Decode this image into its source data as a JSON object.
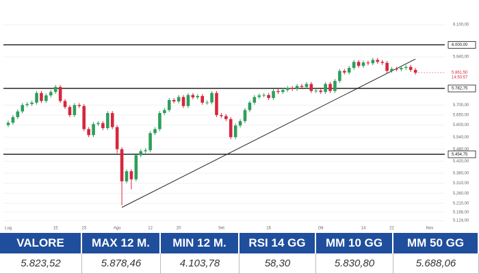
{
  "chart_data": {
    "type": "candlestick",
    "categories": [
      "Lug",
      null,
      null,
      null,
      null,
      null,
      null,
      null,
      null,
      null,
      "15",
      null,
      null,
      null,
      null,
      null,
      "23",
      null,
      null,
      null,
      null,
      null,
      null,
      "Ago",
      null,
      null,
      null,
      null,
      null,
      null,
      "12",
      null,
      null,
      null,
      null,
      null,
      "20",
      null,
      null,
      null,
      null,
      null,
      null,
      null,
      null,
      "Set",
      null,
      null,
      null,
      null,
      null,
      null,
      null,
      null,
      null,
      "16",
      null,
      null,
      null,
      null,
      null,
      null,
      null,
      null,
      null,
      null,
      "Ott",
      null,
      null,
      null,
      null,
      null,
      null,
      null,
      null,
      "14",
      null,
      null,
      null,
      null,
      null,
      "22",
      null,
      null,
      null,
      null,
      null,
      null,
      null,
      "Nov"
    ],
    "open": [
      5600,
      5612,
      5640,
      5668,
      5700,
      5705,
      5712,
      5760,
      5720,
      5748,
      5765,
      5790,
      5720,
      5690,
      5650,
      5700,
      5695,
      5580,
      5550,
      5605,
      5610,
      5585,
      5660,
      5590,
      5480,
      5320,
      5370,
      5330,
      5450,
      5470,
      5475,
      5560,
      5580,
      5660,
      5675,
      5725,
      5718,
      5740,
      5695,
      5750,
      5738,
      5745,
      5712,
      5713,
      5760,
      5650,
      5645,
      5630,
      5540,
      5598,
      5620,
      5675,
      5712,
      5740,
      5748,
      5750,
      5735,
      5770,
      5765,
      5775,
      5785,
      5780,
      5795,
      5790,
      5805,
      5770,
      5772,
      5765,
      5805,
      5770,
      5820,
      5870,
      5862,
      5885,
      5915,
      5895,
      5912,
      5908,
      5925,
      5915,
      5910,
      5870,
      5880,
      5878,
      5885,
      5890,
      5875,
      null,
      null,
      null
    ],
    "high": [
      5622,
      5650,
      5678,
      5710,
      5715,
      5722,
      5770,
      5770,
      5758,
      5775,
      5800,
      5800,
      5730,
      5700,
      5710,
      5710,
      5705,
      5590,
      5615,
      5620,
      5620,
      5670,
      5670,
      5600,
      5490,
      5380,
      5380,
      5460,
      5480,
      5485,
      5570,
      5590,
      5670,
      5685,
      5735,
      5735,
      5750,
      5750,
      5760,
      5760,
      5755,
      5755,
      5723,
      5770,
      5770,
      5660,
      5655,
      5640,
      5608,
      5630,
      5685,
      5722,
      5750,
      5758,
      5760,
      5760,
      5780,
      5780,
      5785,
      5795,
      5795,
      5805,
      5805,
      5815,
      5815,
      5782,
      5782,
      5815,
      5815,
      5830,
      5880,
      5880,
      5895,
      5925,
      5925,
      5922,
      5922,
      5935,
      5935,
      5925,
      5920,
      5890,
      5890,
      5895,
      5900,
      5900,
      5885,
      null,
      null,
      null
    ],
    "low": [
      5590,
      5602,
      5630,
      5658,
      5690,
      5695,
      5702,
      5710,
      5710,
      5738,
      5755,
      5710,
      5680,
      5640,
      5640,
      5685,
      5570,
      5540,
      5540,
      5595,
      5575,
      5575,
      5580,
      5460,
      5200,
      5310,
      5280,
      5320,
      5440,
      5460,
      5465,
      5550,
      5570,
      5650,
      5665,
      5708,
      5708,
      5685,
      5685,
      5728,
      5728,
      5702,
      5702,
      5703,
      5640,
      5635,
      5620,
      5530,
      5530,
      5588,
      5610,
      5665,
      5702,
      5730,
      5738,
      5725,
      5725,
      5755,
      5755,
      5765,
      5770,
      5770,
      5780,
      5780,
      5760,
      5760,
      5755,
      5755,
      5760,
      5760,
      5810,
      5852,
      5852,
      5875,
      5885,
      5885,
      5898,
      5898,
      5905,
      5900,
      5860,
      5860,
      5868,
      5868,
      5875,
      5865,
      5851.5,
      null,
      null,
      null
    ],
    "close": [
      5612,
      5640,
      5668,
      5700,
      5705,
      5712,
      5760,
      5720,
      5748,
      5765,
      5790,
      5720,
      5690,
      5650,
      5700,
      5695,
      5580,
      5550,
      5605,
      5610,
      5585,
      5660,
      5590,
      5480,
      5320,
      5370,
      5330,
      5450,
      5470,
      5475,
      5560,
      5580,
      5660,
      5675,
      5725,
      5718,
      5740,
      5695,
      5750,
      5738,
      5745,
      5712,
      5713,
      5760,
      5650,
      5645,
      5630,
      5540,
      5598,
      5620,
      5675,
      5712,
      5740,
      5748,
      5750,
      5735,
      5770,
      5765,
      5775,
      5785,
      5780,
      5795,
      5790,
      5805,
      5770,
      5772,
      5765,
      5805,
      5770,
      5820,
      5870,
      5862,
      5885,
      5915,
      5895,
      5912,
      5908,
      5925,
      5915,
      5910,
      5870,
      5880,
      5878,
      5885,
      5890,
      5875,
      5861.5,
      null,
      null,
      null
    ],
    "up_color": "#2e9e5b",
    "down_color": "#d7263d",
    "ylim": [
      5097,
      6138
    ],
    "yticks": [
      {
        "value": 6100,
        "label": "6.100,00"
      },
      {
        "value": 5940,
        "label": "5.940,00"
      },
      {
        "value": 5700,
        "label": "5.700,00"
      },
      {
        "value": 5650,
        "label": "5.650,00"
      },
      {
        "value": 5600,
        "label": "5.600,00"
      },
      {
        "value": 5540,
        "label": "5.540,00"
      },
      {
        "value": 5480,
        "label": "5.480,00"
      },
      {
        "value": 5420,
        "label": "5.420,00"
      },
      {
        "value": 5360,
        "label": "5.360,00"
      },
      {
        "value": 5310,
        "label": "5.310,00"
      },
      {
        "value": 5260,
        "label": "5.260,00"
      },
      {
        "value": 5210,
        "label": "5.210,00"
      },
      {
        "value": 5166,
        "label": "5.166,00"
      },
      {
        "value": 5124,
        "label": "5.124,00"
      }
    ],
    "grid": true,
    "hlines": [
      {
        "value": 6000,
        "label": "6.000,00"
      },
      {
        "value": 5782.75,
        "label": "5.782,75"
      },
      {
        "value": 5454.75,
        "label": "5.454,75"
      }
    ],
    "last_price": {
      "value": 5861.5,
      "label": "5.861,50",
      "time": "14:50:57"
    },
    "trendline": {
      "x": [
        24,
        86
      ],
      "y": [
        5190,
        5929
      ]
    }
  },
  "table": {
    "headers": [
      "VALORE",
      "MAX 12 M.",
      "MIN 12 M.",
      "RSI 14 GG",
      "MM 10 GG",
      "MM 50 GG"
    ],
    "values": [
      "5.823,52",
      "5.878,46",
      "4.103,78",
      "58,30",
      "5.830,80",
      "5.688,06"
    ]
  }
}
